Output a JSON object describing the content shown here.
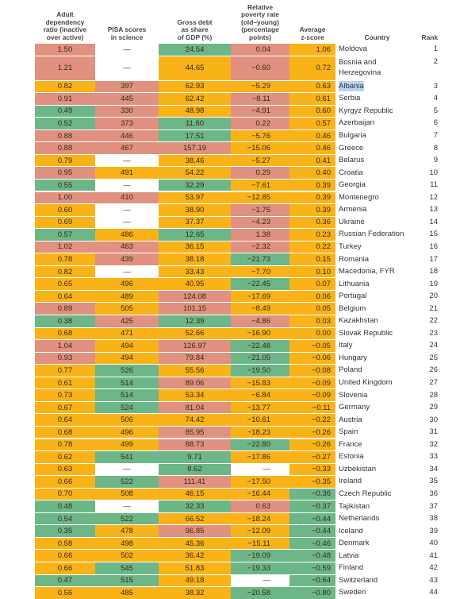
{
  "colors": {
    "orange": "#f9b319",
    "red": "#e0917f",
    "green": "#6cb688",
    "white": "#ffffff"
  },
  "headers": {
    "c1": "Adult\ndependency\nratio (inactive\nover active)",
    "c2": "PISA scores\nin science",
    "c3": "Gross debt\nas share\nof GDP (%)",
    "c4": "Relative\npoverty rate\n(old–young)\n(percentage\npoints)",
    "c5": "Average\nz-score",
    "country": "Country",
    "rank": "Rank"
  },
  "rows": [
    {
      "v": [
        "1.50",
        "—",
        "24.54",
        "0.04",
        "1.06"
      ],
      "c": [
        "red",
        "white",
        "green",
        "red",
        "orange"
      ],
      "country": "Moldova",
      "rank": "1"
    },
    {
      "v": [
        "1.21",
        "—",
        "44.65",
        "−0.60",
        "0.72"
      ],
      "c": [
        "red",
        "white",
        "orange",
        "red",
        "orange"
      ],
      "country": "Bosnia and\nHerzegovina",
      "rank": "2",
      "tall": true
    },
    {
      "v": [
        "0.82",
        "397",
        "62.93",
        "−5.29",
        "0.63"
      ],
      "c": [
        "orange",
        "red",
        "orange",
        "orange",
        "orange"
      ],
      "country": "Albania",
      "rank": "3",
      "hl": true
    },
    {
      "v": [
        "0.91",
        "445",
        "62.42",
        "−8.11",
        "0.61"
      ],
      "c": [
        "red",
        "red",
        "orange",
        "red",
        "orange"
      ],
      "country": "Serbia",
      "rank": "4"
    },
    {
      "v": [
        "0.49",
        "330",
        "48.98",
        "−4.91",
        "0.60"
      ],
      "c": [
        "green",
        "red",
        "orange",
        "red",
        "orange"
      ],
      "country": "Kyrgyz Republic",
      "rank": "5"
    },
    {
      "v": [
        "0.52",
        "373",
        "11.60",
        "0.22",
        "0.57"
      ],
      "c": [
        "green",
        "red",
        "green",
        "red",
        "orange"
      ],
      "country": "Azerbaijan",
      "rank": "6"
    },
    {
      "v": [
        "0.88",
        "446",
        "17.51",
        "−5.76",
        "0.46"
      ],
      "c": [
        "red",
        "red",
        "green",
        "orange",
        "orange"
      ],
      "country": "Bulgaria",
      "rank": "7"
    },
    {
      "v": [
        "0.88",
        "467",
        "157.19",
        "−15.06",
        "0.46"
      ],
      "c": [
        "red",
        "red",
        "red",
        "orange",
        "orange"
      ],
      "country": "Greece",
      "rank": "8"
    },
    {
      "v": [
        "0.79",
        "—",
        "38.46",
        "−5.27",
        "0.41"
      ],
      "c": [
        "orange",
        "white",
        "orange",
        "orange",
        "orange"
      ],
      "country": "Belarus",
      "rank": "9"
    },
    {
      "v": [
        "0.95",
        "491",
        "54.22",
        "0.29",
        "0.40"
      ],
      "c": [
        "red",
        "orange",
        "orange",
        "red",
        "orange"
      ],
      "country": "Croatia",
      "rank": "10"
    },
    {
      "v": [
        "0.55",
        "—",
        "32.29",
        "−7.61",
        "0.39"
      ],
      "c": [
        "green",
        "white",
        "green",
        "orange",
        "orange"
      ],
      "country": "Georgia",
      "rank": "11"
    },
    {
      "v": [
        "1.00",
        "410",
        "53.97",
        "−12.85",
        "0.39"
      ],
      "c": [
        "red",
        "red",
        "orange",
        "orange",
        "orange"
      ],
      "country": "Montenegro",
      "rank": "12"
    },
    {
      "v": [
        "0.60",
        "—",
        "38.90",
        "−1.75",
        "0.39"
      ],
      "c": [
        "orange",
        "white",
        "orange",
        "red",
        "orange"
      ],
      "country": "Armenia",
      "rank": "13"
    },
    {
      "v": [
        "0.69",
        "—",
        "37.37",
        "−4.23",
        "0.36"
      ],
      "c": [
        "orange",
        "white",
        "orange",
        "red",
        "orange"
      ],
      "country": "Ukraine",
      "rank": "14"
    },
    {
      "v": [
        "0.57",
        "486",
        "12.65",
        "1.38",
        "0.23"
      ],
      "c": [
        "green",
        "orange",
        "green",
        "red",
        "orange"
      ],
      "country": "Russian Federation",
      "rank": "15"
    },
    {
      "v": [
        "1.02",
        "463",
        "36.15",
        "−2.32",
        "0.22"
      ],
      "c": [
        "red",
        "red",
        "orange",
        "red",
        "orange"
      ],
      "country": "Turkey",
      "rank": "16"
    },
    {
      "v": [
        "0.78",
        "439",
        "38.18",
        "−21.73",
        "0.15"
      ],
      "c": [
        "orange",
        "red",
        "orange",
        "green",
        "orange"
      ],
      "country": "Romania",
      "rank": "17"
    },
    {
      "v": [
        "0.82",
        "—",
        "33.43",
        "−7.70",
        "0.10"
      ],
      "c": [
        "orange",
        "white",
        "orange",
        "orange",
        "orange"
      ],
      "country": "Macedonia, FYR",
      "rank": "18"
    },
    {
      "v": [
        "0.65",
        "496",
        "40.95",
        "−22.45",
        "0.07"
      ],
      "c": [
        "orange",
        "orange",
        "orange",
        "green",
        "orange"
      ],
      "country": "Lithuania",
      "rank": "19"
    },
    {
      "v": [
        "0.64",
        "489",
        "124.08",
        "−17.69",
        "0.06"
      ],
      "c": [
        "orange",
        "orange",
        "red",
        "orange",
        "orange"
      ],
      "country": "Portugal",
      "rank": "20"
    },
    {
      "v": [
        "0.89",
        "505",
        "101.15",
        "−8.49",
        "0.05"
      ],
      "c": [
        "red",
        "orange",
        "red",
        "orange",
        "orange"
      ],
      "country": "Belgium",
      "rank": "21"
    },
    {
      "v": [
        "0.38",
        "425",
        "12.39",
        "−4.86",
        "0.03"
      ],
      "c": [
        "green",
        "red",
        "green",
        "red",
        "orange"
      ],
      "country": "Kazakhstan",
      "rank": "22"
    },
    {
      "v": [
        "0.68",
        "471",
        "52.66",
        "−16.90",
        "0.00"
      ],
      "c": [
        "orange",
        "orange",
        "orange",
        "orange",
        "orange"
      ],
      "country": "Slovak Republic",
      "rank": "23"
    },
    {
      "v": [
        "1.04",
        "494",
        "126.97",
        "−22.48",
        "−0.05"
      ],
      "c": [
        "red",
        "orange",
        "red",
        "green",
        "orange"
      ],
      "country": "Italy",
      "rank": "24"
    },
    {
      "v": [
        "0.93",
        "494",
        "79.84",
        "−21.05",
        "−0.06"
      ],
      "c": [
        "red",
        "orange",
        "red",
        "green",
        "orange"
      ],
      "country": "Hungary",
      "rank": "25"
    },
    {
      "v": [
        "0.77",
        "526",
        "55.56",
        "−19.50",
        "−0.08"
      ],
      "c": [
        "orange",
        "green",
        "orange",
        "green",
        "orange"
      ],
      "country": "Poland",
      "rank": "26"
    },
    {
      "v": [
        "0.61",
        "514",
        "89.06",
        "−15.83",
        "−0.09"
      ],
      "c": [
        "orange",
        "green",
        "red",
        "orange",
        "orange"
      ],
      "country": "United Kingdom",
      "rank": "27"
    },
    {
      "v": [
        "0.73",
        "514",
        "53.34",
        "−6.84",
        "−0.09"
      ],
      "c": [
        "orange",
        "green",
        "orange",
        "orange",
        "orange"
      ],
      "country": "Slovenia",
      "rank": "28"
    },
    {
      "v": [
        "0.67",
        "524",
        "81.04",
        "−13.77",
        "−0.11"
      ],
      "c": [
        "orange",
        "green",
        "red",
        "orange",
        "orange"
      ],
      "country": "Germany",
      "rank": "29"
    },
    {
      "v": [
        "0.64",
        "506",
        "74.42",
        "−10.61",
        "−0.22"
      ],
      "c": [
        "orange",
        "orange",
        "orange",
        "orange",
        "orange"
      ],
      "country": "Austria",
      "rank": "30"
    },
    {
      "v": [
        "0.68",
        "496",
        "85.95",
        "−18.23",
        "−0.26"
      ],
      "c": [
        "orange",
        "orange",
        "red",
        "orange",
        "orange"
      ],
      "country": "Spain",
      "rank": "31"
    },
    {
      "v": [
        "0.78",
        "499",
        "88.73",
        "−22.80",
        "−0.26"
      ],
      "c": [
        "orange",
        "orange",
        "red",
        "green",
        "orange"
      ],
      "country": "France",
      "rank": "32"
    },
    {
      "v": [
        "0.62",
        "541",
        "9.71",
        "−17.86",
        "−0.27"
      ],
      "c": [
        "orange",
        "green",
        "green",
        "orange",
        "orange"
      ],
      "country": "Estonia",
      "rank": "33"
    },
    {
      "v": [
        "0.63",
        "—",
        "8.62",
        "—",
        "−0.33"
      ],
      "c": [
        "orange",
        "white",
        "green",
        "white",
        "orange"
      ],
      "country": "Uzbekistan",
      "rank": "34"
    },
    {
      "v": [
        "0.66",
        "522",
        "111.41",
        "−17.50",
        "−0.35"
      ],
      "c": [
        "orange",
        "green",
        "red",
        "orange",
        "orange"
      ],
      "country": "Ireland",
      "rank": "35"
    },
    {
      "v": [
        "0.70",
        "508",
        "46.15",
        "−16.44",
        "−0.36"
      ],
      "c": [
        "orange",
        "orange",
        "orange",
        "orange",
        "green"
      ],
      "country": "Czech Republic",
      "rank": "36"
    },
    {
      "v": [
        "0.48",
        "—",
        "32.33",
        "0.63",
        "−0.37"
      ],
      "c": [
        "green",
        "white",
        "green",
        "red",
        "green"
      ],
      "country": "Tajikistan",
      "rank": "37"
    },
    {
      "v": [
        "0.54",
        "522",
        "66.52",
        "−18.24",
        "−0.44"
      ],
      "c": [
        "green",
        "green",
        "orange",
        "orange",
        "green"
      ],
      "country": "Netherlands",
      "rank": "38"
    },
    {
      "v": [
        "0.35",
        "478",
        "96.85",
        "−12.09",
        "−0.44"
      ],
      "c": [
        "green",
        "orange",
        "red",
        "orange",
        "green"
      ],
      "country": "Iceland",
      "rank": "39"
    },
    {
      "v": [
        "0.58",
        "498",
        "45.36",
        "−15.11",
        "−0.46"
      ],
      "c": [
        "orange",
        "orange",
        "orange",
        "orange",
        "green"
      ],
      "country": "Denmark",
      "rank": "40"
    },
    {
      "v": [
        "0.66",
        "502",
        "36.42",
        "−19.09",
        "−0.48"
      ],
      "c": [
        "orange",
        "orange",
        "orange",
        "green",
        "green"
      ],
      "country": "Latvia",
      "rank": "41"
    },
    {
      "v": [
        "0.66",
        "545",
        "51.83",
        "−19.33",
        "−0.59"
      ],
      "c": [
        "orange",
        "green",
        "orange",
        "green",
        "green"
      ],
      "country": "Finland",
      "rank": "42"
    },
    {
      "v": [
        "0.47",
        "515",
        "49.18",
        "—",
        "−0.64"
      ],
      "c": [
        "green",
        "green",
        "orange",
        "white",
        "green"
      ],
      "country": "Switzerland",
      "rank": "43"
    },
    {
      "v": [
        "0.56",
        "485",
        "38.32",
        "−20.58",
        "−0.80"
      ],
      "c": [
        "orange",
        "orange",
        "orange",
        "green",
        "green"
      ],
      "country": "Sweden",
      "rank": "44"
    }
  ]
}
